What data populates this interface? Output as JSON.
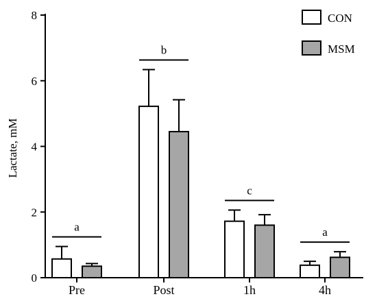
{
  "chart_data": {
    "type": "bar",
    "ylabel": "Lactate, mM",
    "xlabel": "",
    "ylim": [
      0,
      8
    ],
    "yticks": [
      "0",
      "2",
      "4",
      "6",
      "8"
    ],
    "categories": [
      "Pre",
      "Post",
      "1h",
      "4h"
    ],
    "series": [
      {
        "name": "CON",
        "color": "#ffffff",
        "values": [
          0.57,
          5.22,
          1.72,
          0.38
        ],
        "errors": [
          0.38,
          1.12,
          0.34,
          0.12
        ]
      },
      {
        "name": "MSM",
        "color": "#a6a6a6",
        "values": [
          0.35,
          4.45,
          1.6,
          0.62
        ],
        "errors": [
          0.08,
          0.97,
          0.32,
          0.17
        ]
      }
    ],
    "significance_letters": [
      "a",
      "b",
      "c",
      "a"
    ],
    "legend_position": "top-right",
    "grid": false
  }
}
